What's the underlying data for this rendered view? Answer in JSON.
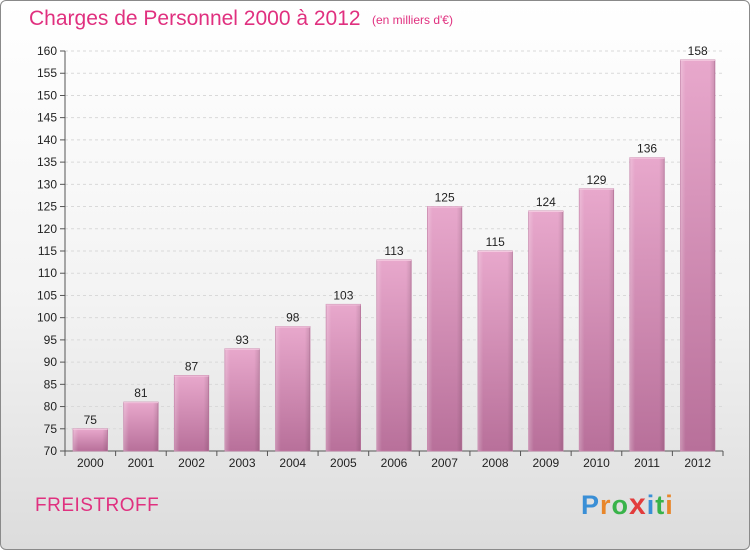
{
  "title": "Charges de Personnel 2000 à 2012",
  "subtitle": "(en milliers d'€)",
  "location": "FREISTROFF",
  "brand": {
    "letters": [
      "P",
      "r",
      "o",
      "x",
      "i",
      "t",
      "i"
    ],
    "colors": [
      "#3a8fd6",
      "#e8862a",
      "#39b34a",
      "#e23c3c",
      "#3a8fd6",
      "#39b34a",
      "#e8862a"
    ]
  },
  "colors": {
    "bar": "#d98fba",
    "bar_top": "#e8a8cc",
    "bar_bottom": "#b8709a",
    "title": "#e0307f"
  },
  "chart_data": {
    "type": "bar",
    "categories": [
      "2000",
      "2001",
      "2002",
      "2003",
      "2004",
      "2005",
      "2006",
      "2007",
      "2008",
      "2009",
      "2010",
      "2011",
      "2012"
    ],
    "values": [
      75,
      81,
      87,
      93,
      98,
      103,
      113,
      125,
      115,
      124,
      129,
      136,
      158
    ],
    "ylim": [
      70,
      160
    ],
    "yticks": [
      70,
      75,
      80,
      85,
      90,
      95,
      100,
      105,
      110,
      115,
      120,
      125,
      130,
      135,
      140,
      145,
      150,
      155,
      160
    ],
    "grid": true
  }
}
